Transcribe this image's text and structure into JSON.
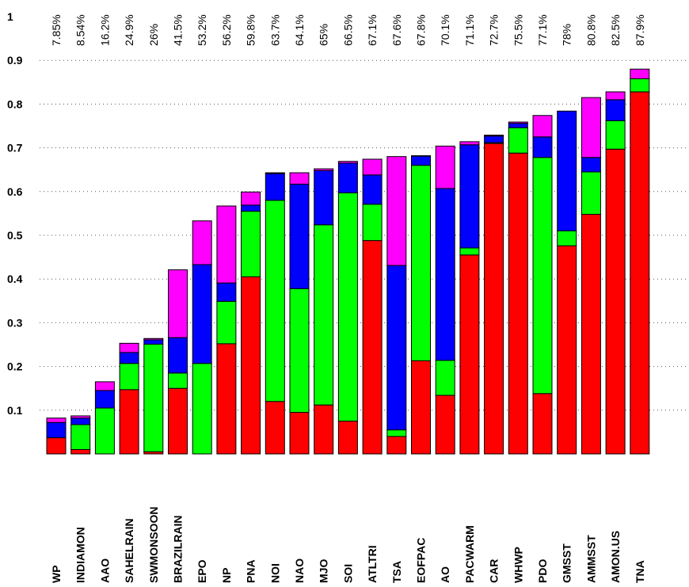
{
  "chart_data": {
    "type": "bar",
    "stacked": true,
    "categories": [
      "WP",
      "INDIAMON",
      "AAO",
      "SAHELRAIN",
      "SWMONSOON",
      "BRAZILRAIN",
      "EPO",
      "NP",
      "PNA",
      "NOI",
      "NAO",
      "MJO",
      "SOI",
      "ATLTRI",
      "TSA",
      "EOFPAC",
      "AO",
      "PACWARM",
      "CAR",
      "WHWP",
      "PDO",
      "GMSST",
      "AMMSST",
      "AMON.US",
      "TNA"
    ],
    "percent_labels": [
      "7.85%",
      "8.54%",
      "16.2%",
      "24.9%",
      "26%",
      "41.5%",
      "53.2%",
      "56.2%",
      "59.8%",
      "63.7%",
      "64.1%",
      "65%",
      "66.5%",
      "67.1%",
      "67.6%",
      "67.8%",
      "70.1%",
      "71.1%",
      "72.7%",
      "75.5%",
      "77.1%",
      "78%",
      "80.8%",
      "82.5%",
      "87.9%"
    ],
    "series_colors": [
      "#ff0000",
      "#00ff00",
      "#0000ff",
      "#ff00ff"
    ],
    "series": [
      {
        "values": [
          0.037,
          0.01,
          0,
          0.147,
          0.005,
          0.15,
          0,
          0.252,
          0.405,
          0.12,
          0.095,
          0.112,
          0.075,
          0.488,
          0.04,
          0.213,
          0.134,
          0.455,
          0.71,
          0.688,
          0.138,
          0.476,
          0.548,
          0.697,
          0.828
        ]
      },
      {
        "values": [
          0,
          0.057,
          0.105,
          0.06,
          0.246,
          0.035,
          0.207,
          0.097,
          0.15,
          0.46,
          0.283,
          0.412,
          0.522,
          0.083,
          0.015,
          0.447,
          0.08,
          0.016,
          0.002,
          0.058,
          0.54,
          0.034,
          0.097,
          0.065,
          0.03
        ]
      },
      {
        "values": [
          0.035,
          0.015,
          0.04,
          0.025,
          0.01,
          0.081,
          0.226,
          0.042,
          0.014,
          0.061,
          0.239,
          0.124,
          0.068,
          0.067,
          0.376,
          0.021,
          0.393,
          0.236,
          0.015,
          0.01,
          0.047,
          0.274,
          0.033,
          0.048,
          0
        ]
      },
      {
        "values": [
          0.01,
          0.005,
          0.02,
          0.021,
          0.003,
          0.155,
          0.1,
          0.176,
          0.03,
          0.002,
          0.026,
          0.004,
          0.004,
          0.036,
          0.249,
          0.001,
          0.097,
          0.007,
          0.002,
          0.003,
          0.049,
          0,
          0.137,
          0.018,
          0.022
        ]
      }
    ],
    "yticks": [
      "0.1",
      "0.2",
      "0.3",
      "0.4",
      "0.5",
      "0.6",
      "0.7",
      "0.8",
      "0.9",
      "1"
    ],
    "ylim": [
      0,
      1
    ],
    "grid": "y-dotted",
    "title": "",
    "xlabel": "",
    "ylabel": ""
  }
}
